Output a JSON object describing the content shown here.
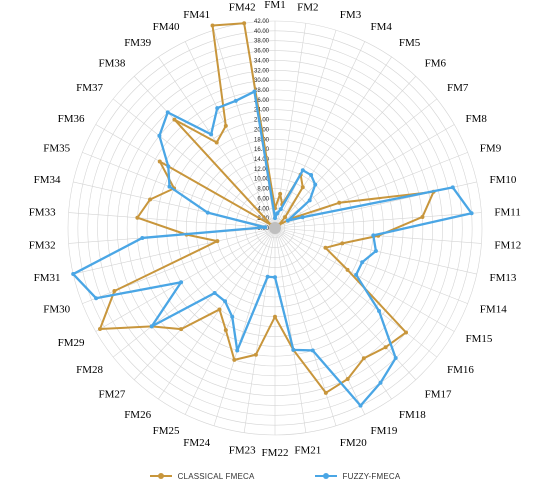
{
  "chart_data": {
    "type": "radar",
    "title": "",
    "categories": [
      "FM1",
      "FM2",
      "FM3",
      "FM4",
      "FM5",
      "FM6",
      "FM7",
      "FM8",
      "FM9",
      "FM10",
      "FM11",
      "FM12",
      "FM13",
      "FM14",
      "FM15",
      "FM16",
      "FM17",
      "FM18",
      "FM19",
      "FM20",
      "FM21",
      "FM22",
      "FM23",
      "FM24",
      "FM25",
      "FM26",
      "FM27",
      "FM28",
      "FM29",
      "FM30",
      "FM31",
      "FM32",
      "FM33",
      "FM34",
      "FM35",
      "FM36",
      "FM37",
      "FM38",
      "FM39",
      "FM40",
      "FM41",
      "FM42"
    ],
    "rmax": 42,
    "tick_step": 2,
    "tick_labels": [
      "0.00",
      "2.00",
      "4.00",
      "6.00",
      "8.00",
      "10.00",
      "12.00",
      "14.00",
      "16.00",
      "18.00",
      "20.00",
      "22.00",
      "24.00",
      "26.00",
      "28.00",
      "30.00",
      "32.00",
      "34.00",
      "36.00",
      "38.00",
      "40.00",
      "42.00"
    ],
    "series": [
      {
        "name": "CLASSICAL FMECA",
        "color": "#C8963C",
        "values": [
          4,
          7,
          5,
          12,
          10,
          3,
          1,
          4,
          14,
          33,
          30,
          21,
          14,
          11,
          17,
          34,
          33,
          32,
          34,
          35,
          25,
          18,
          26,
          28,
          23,
          20,
          28,
          32,
          41,
          35,
          12,
          18,
          28,
          26,
          22,
          27,
          1,
          30,
          21,
          23,
          43,
          42
        ]
      },
      {
        "name": "FUZZY-FMECA",
        "color": "#4AA6E5",
        "values": [
          2,
          3,
          4,
          13,
          13,
          12,
          9,
          3,
          6,
          37,
          40,
          20,
          21,
          19,
          19,
          27,
          36,
          38,
          40,
          26,
          25,
          10,
          10,
          26,
          20,
          18,
          18,
          32,
          22,
          39,
          42,
          27,
          2,
          14,
          23,
          25,
          30,
          32,
          23,
          27,
          27,
          28
        ]
      }
    ]
  }
}
